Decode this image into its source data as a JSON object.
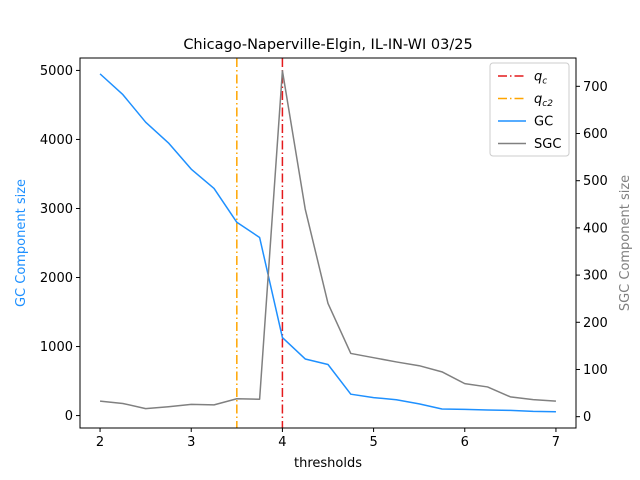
{
  "chart_data": {
    "type": "line",
    "title": "Chicago-Naperville-Elgin, IL-IN-WI 03/25",
    "xlabel": "thresholds",
    "ylabel_left": "GC Component size",
    "ylabel_right": "SGC Component size",
    "xlim": [
      1.78,
      7.22
    ],
    "ylim_left": [
      -180,
      5180
    ],
    "ylim_right": [
      -24,
      760
    ],
    "x_ticks": [
      2,
      3,
      4,
      5,
      6,
      7
    ],
    "y_ticks_left": [
      0,
      1000,
      2000,
      3000,
      4000,
      5000
    ],
    "y_ticks_right": [
      0,
      100,
      200,
      300,
      400,
      500,
      600,
      700
    ],
    "vlines": [
      {
        "name": "q_c",
        "label_main": "q",
        "label_sub": "c",
        "x": 4.0,
        "color": "#e41a1c"
      },
      {
        "name": "q_c2",
        "label_main": "q",
        "label_sub": "c2",
        "x": 3.5,
        "color": "#ffa500"
      }
    ],
    "series": [
      {
        "name": "GC",
        "axis": "left",
        "color": "#1e90ff",
        "x": [
          2,
          2.25,
          2.5,
          2.75,
          3,
          3.25,
          3.5,
          3.75,
          4,
          4.25,
          4.5,
          4.75,
          5,
          5.25,
          5.5,
          5.75,
          6,
          6.25,
          6.5,
          6.75,
          7
        ],
        "values": [
          4950,
          4650,
          4250,
          3950,
          3570,
          3290,
          2800,
          2580,
          1130,
          820,
          740,
          310,
          260,
          230,
          170,
          95,
          90,
          80,
          75,
          60,
          55
        ]
      },
      {
        "name": "SGC",
        "axis": "right",
        "color": "#808080",
        "x": [
          2,
          2.25,
          2.5,
          2.75,
          3,
          3.25,
          3.5,
          3.75,
          4,
          4.25,
          4.5,
          4.75,
          5,
          5.25,
          5.5,
          5.75,
          6,
          6.25,
          6.5,
          6.75,
          7
        ],
        "values": [
          33,
          28,
          17,
          21,
          26,
          25,
          38,
          37,
          733,
          440,
          240,
          134,
          125,
          116,
          108,
          95,
          70,
          63,
          42,
          36,
          33
        ]
      }
    ],
    "legend_position": "top-right",
    "grid": false
  }
}
